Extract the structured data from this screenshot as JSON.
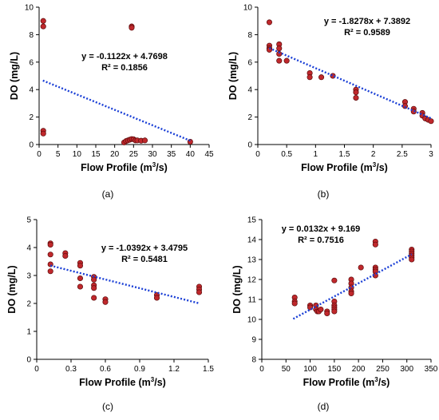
{
  "chart_data": [
    {
      "type": "scatter",
      "panel_label": "(a)",
      "xlabel_parts": [
        "Flow Profile (m",
        "3",
        "/s)"
      ],
      "ylabel": "DO (mg/L)",
      "xlim": [
        0,
        45
      ],
      "xticks": [
        0,
        5,
        10,
        15,
        20,
        25,
        30,
        35,
        40,
        45
      ],
      "ylim": [
        0,
        10
      ],
      "yticks": [
        0,
        2,
        4,
        6,
        8,
        10
      ],
      "trend": {
        "slope": -0.1122,
        "intercept": 4.7698,
        "x_range": [
          1,
          40
        ]
      },
      "equation": "y = -0.1122x + 4.7698",
      "r2": "R² = 0.1856",
      "points": [
        [
          1.1,
          9.0
        ],
        [
          1.1,
          8.6
        ],
        [
          1.1,
          1.0
        ],
        [
          1.1,
          0.8
        ],
        [
          24.5,
          8.6
        ],
        [
          24.5,
          8.5
        ],
        [
          22.5,
          0.15
        ],
        [
          23,
          0.25
        ],
        [
          23.5,
          0.3
        ],
        [
          24,
          0.35
        ],
        [
          24.5,
          0.4
        ],
        [
          25,
          0.38
        ],
        [
          25.5,
          0.3
        ],
        [
          26,
          0.3
        ],
        [
          27,
          0.28
        ],
        [
          28,
          0.3
        ],
        [
          40,
          0.2
        ]
      ]
    },
    {
      "type": "scatter",
      "panel_label": "(b)",
      "xlabel_parts": [
        "Flow Profile (m",
        "3",
        "/s)"
      ],
      "ylabel": "DO (mg/L)",
      "xlim": [
        0,
        3
      ],
      "xticks": [
        0,
        0.5,
        1,
        1.5,
        2,
        2.5,
        3
      ],
      "ylim": [
        0,
        10
      ],
      "yticks": [
        0,
        2,
        4,
        6,
        8,
        10
      ],
      "trend": {
        "slope": -1.8278,
        "intercept": 7.3892,
        "x_range": [
          0.2,
          3
        ]
      },
      "equation": "y = -1.8278x + 7.3892",
      "r2": "R² = 0.9589",
      "points": [
        [
          0.2,
          8.9
        ],
        [
          0.2,
          7.2
        ],
        [
          0.2,
          7.0
        ],
        [
          0.2,
          6.9
        ],
        [
          0.37,
          7.3
        ],
        [
          0.37,
          7.0
        ],
        [
          0.37,
          6.6
        ],
        [
          0.37,
          6.1
        ],
        [
          0.5,
          6.1
        ],
        [
          0.9,
          5.2
        ],
        [
          0.9,
          4.9
        ],
        [
          1.1,
          4.9
        ],
        [
          1.3,
          5.0
        ],
        [
          1.7,
          4.0
        ],
        [
          1.7,
          3.8
        ],
        [
          1.7,
          3.4
        ],
        [
          2.55,
          3.1
        ],
        [
          2.55,
          2.8
        ],
        [
          2.7,
          2.6
        ],
        [
          2.7,
          2.4
        ],
        [
          2.85,
          2.3
        ],
        [
          2.85,
          2.1
        ],
        [
          2.9,
          1.9
        ],
        [
          2.95,
          1.8
        ],
        [
          3.0,
          1.7
        ]
      ]
    },
    {
      "type": "scatter",
      "panel_label": "(c)",
      "xlabel_parts": [
        "Flow Profile (m",
        "3",
        "/s)"
      ],
      "ylabel": "DO (mg/L)",
      "xlim": [
        0,
        1.5
      ],
      "xticks": [
        0,
        0.3,
        0.6,
        0.9,
        1.2,
        1.5
      ],
      "ylim": [
        0,
        5
      ],
      "yticks": [
        0,
        1,
        2,
        3,
        4,
        5
      ],
      "trend": {
        "slope": -1.0392,
        "intercept": 3.4795,
        "x_range": [
          0.12,
          1.42
        ]
      },
      "equation": "y = -1.0392x + 3.4795",
      "r2": "R² = 0.5481",
      "points": [
        [
          0.12,
          4.15
        ],
        [
          0.12,
          4.1
        ],
        [
          0.12,
          3.75
        ],
        [
          0.12,
          3.4
        ],
        [
          0.12,
          3.15
        ],
        [
          0.25,
          3.8
        ],
        [
          0.25,
          3.7
        ],
        [
          0.38,
          3.45
        ],
        [
          0.38,
          3.35
        ],
        [
          0.38,
          2.9
        ],
        [
          0.38,
          2.6
        ],
        [
          0.5,
          2.95
        ],
        [
          0.5,
          2.85
        ],
        [
          0.5,
          2.65
        ],
        [
          0.5,
          2.55
        ],
        [
          0.5,
          2.2
        ],
        [
          0.6,
          2.15
        ],
        [
          0.6,
          2.05
        ],
        [
          1.05,
          2.3
        ],
        [
          1.05,
          2.2
        ],
        [
          1.42,
          2.6
        ],
        [
          1.42,
          2.5
        ],
        [
          1.42,
          2.4
        ]
      ]
    },
    {
      "type": "scatter",
      "panel_label": "(d)",
      "xlabel_parts": [
        "Flow Profile (m",
        "3",
        "/s)"
      ],
      "ylabel": "DO (mg/L)",
      "xlim": [
        0,
        350
      ],
      "xticks": [
        0,
        50,
        100,
        150,
        200,
        250,
        300,
        350
      ],
      "ylim": [
        8,
        15
      ],
      "yticks": [
        8,
        9,
        10,
        11,
        12,
        13,
        14,
        15
      ],
      "trend": {
        "slope": 0.0132,
        "intercept": 9.169,
        "x_range": [
          65,
          310
        ]
      },
      "equation": "y = 0.0132x + 9.169",
      "r2": "R² = 0.7516",
      "points": [
        [
          68,
          11.1
        ],
        [
          68,
          10.9
        ],
        [
          68,
          10.8
        ],
        [
          100,
          10.7
        ],
        [
          100,
          10.6
        ],
        [
          112,
          10.7
        ],
        [
          112,
          10.5
        ],
        [
          115,
          10.4
        ],
        [
          118,
          10.4
        ],
        [
          122,
          10.5
        ],
        [
          135,
          10.4
        ],
        [
          135,
          10.3
        ],
        [
          150,
          11.95
        ],
        [
          150,
          10.9
        ],
        [
          150,
          10.7
        ],
        [
          150,
          10.6
        ],
        [
          150,
          10.5
        ],
        [
          150,
          10.4
        ],
        [
          185,
          12.0
        ],
        [
          185,
          11.8
        ],
        [
          185,
          11.6
        ],
        [
          185,
          11.4
        ],
        [
          185,
          11.3
        ],
        [
          205,
          12.6
        ],
        [
          235,
          13.9
        ],
        [
          235,
          13.75
        ],
        [
          235,
          12.6
        ],
        [
          235,
          12.5
        ],
        [
          235,
          12.4
        ],
        [
          235,
          12.2
        ],
        [
          310,
          13.5
        ],
        [
          310,
          13.4
        ],
        [
          310,
          13.3
        ],
        [
          310,
          13.2
        ],
        [
          310,
          13.1
        ],
        [
          310,
          13.0
        ]
      ]
    }
  ]
}
